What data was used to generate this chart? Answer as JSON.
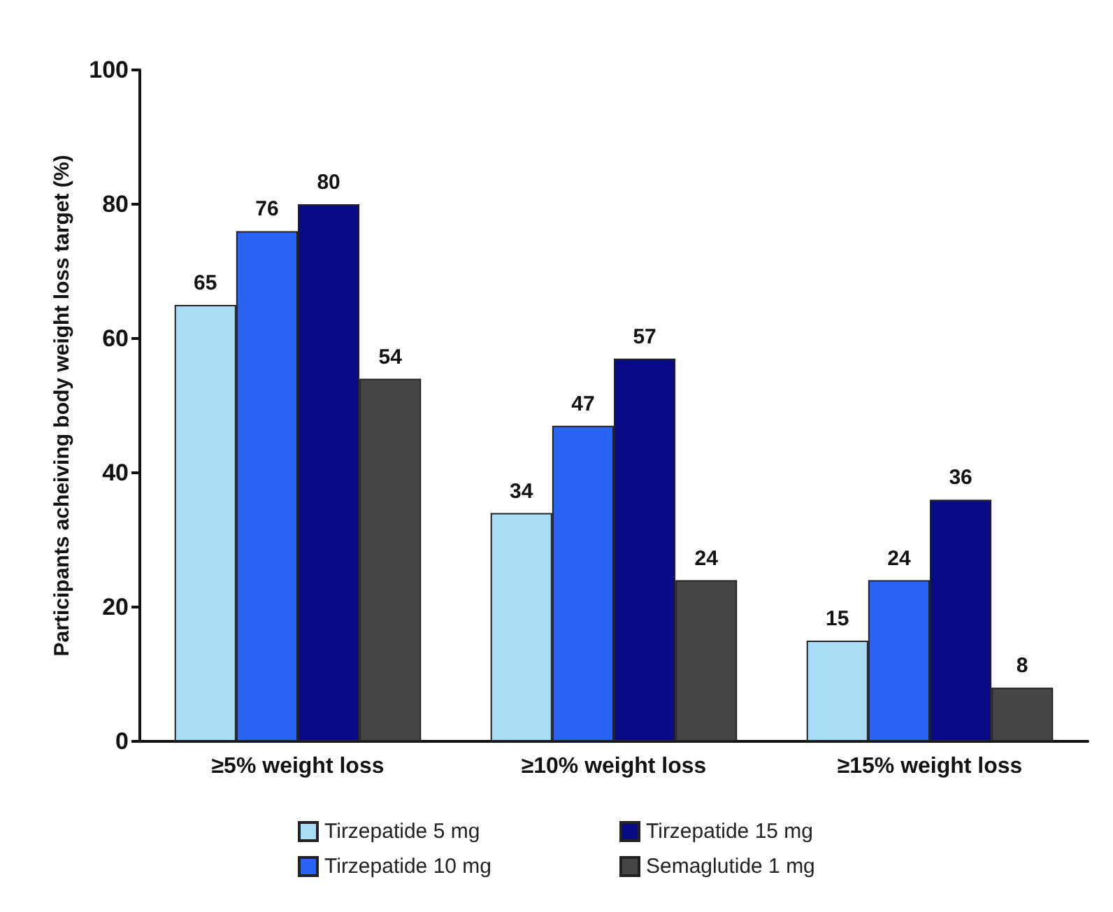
{
  "chart_data": {
    "type": "bar",
    "ylabel": "Participants acheiving body weight loss target (%)",
    "categories": [
      "≥5% weight loss",
      "≥10% weight loss",
      "≥15% weight loss"
    ],
    "series": [
      {
        "name": "Tirzepatide 5 mg",
        "color": "#a9dcf7",
        "values": [
          65,
          34,
          15
        ]
      },
      {
        "name": "Tirzepatide 10 mg",
        "color": "#2b63f5",
        "values": [
          76,
          47,
          24
        ]
      },
      {
        "name": "Tirzepatide 15 mg",
        "color": "#0a0a85",
        "values": [
          80,
          57,
          36
        ]
      },
      {
        "name": "Semaglutide 1 mg",
        "color": "#454545",
        "values": [
          54,
          24,
          8
        ]
      }
    ],
    "ylim": [
      0,
      100
    ],
    "yticks": [
      0,
      20,
      40,
      60,
      80,
      100
    ],
    "grid": false,
    "legend": "bottom",
    "data_labels": true
  }
}
